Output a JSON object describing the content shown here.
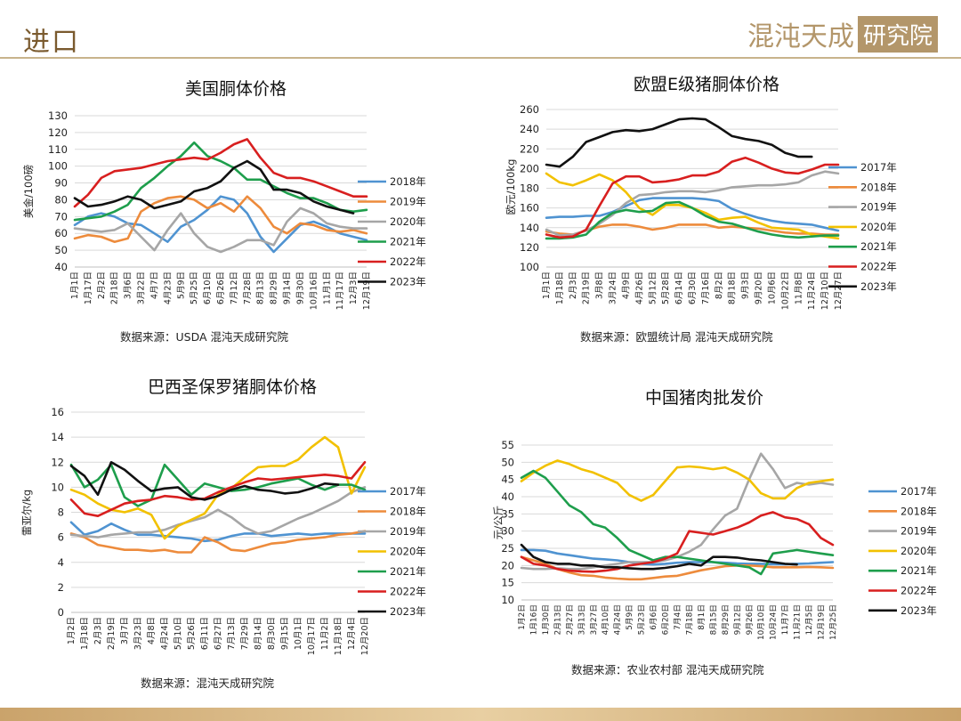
{
  "header": {
    "title": "进口",
    "brand_text": "混沌天成",
    "brand_seal": "研究院"
  },
  "colors": {
    "2017年": "#4f93d1",
    "2018年": "#4f93d1",
    "2019年": "#ed8b3c",
    "2020年": "#a6a6a6",
    "2021年": "#1e9e4c",
    "2022年": "#d81f1f",
    "2023年": "#111111",
    "yellow": "#f2c100"
  },
  "chart_data": [
    {
      "type": "line",
      "title": "美国胴体价格",
      "ylabel": "美金/100磅",
      "source": "数据来源：USDA  混沌天成研究院",
      "ylim": [
        40,
        130
      ],
      "yticks": [
        40,
        50,
        60,
        70,
        80,
        90,
        100,
        110,
        120,
        130
      ],
      "x_ticks": [
        "1月1日",
        "1月17日",
        "2月2日",
        "2月18日",
        "3月6日",
        "3月22日",
        "4月7日",
        "4月23日",
        "5月9日",
        "5月25日",
        "6月10日",
        "6月26日",
        "7月12日",
        "7月28日",
        "8月13日",
        "8月29日",
        "9月14日",
        "9月30日",
        "10月16日",
        "11月1日",
        "11月17日",
        "12月3日",
        "12月19日"
      ],
      "series": [
        {
          "name": "2018年",
          "color": "#4f93d1",
          "values": [
            65,
            70,
            72,
            70,
            66,
            65,
            60,
            55,
            64,
            68,
            74,
            82,
            80,
            72,
            58,
            49,
            57,
            65,
            67,
            64,
            60,
            58,
            56
          ]
        },
        {
          "name": "2019年",
          "color": "#ed8b3c",
          "values": [
            57,
            59,
            58,
            55,
            57,
            73,
            78,
            81,
            82,
            80,
            75,
            78,
            73,
            82,
            75,
            64,
            60,
            66,
            65,
            62,
            61,
            62,
            60
          ]
        },
        {
          "name": "2020年",
          "color": "#a6a6a6",
          "values": [
            63,
            62,
            61,
            62,
            66,
            58,
            50,
            62,
            72,
            60,
            52,
            49,
            52,
            56,
            56,
            53,
            67,
            75,
            72,
            66,
            64,
            63,
            63
          ]
        },
        {
          "name": "2021年",
          "color": "#1e9e4c",
          "values": [
            68,
            69,
            70,
            73,
            77,
            87,
            93,
            100,
            106,
            114,
            106,
            103,
            99,
            92,
            92,
            88,
            84,
            81,
            81,
            78,
            74,
            73,
            74
          ]
        },
        {
          "name": "2022年",
          "color": "#d81f1f",
          "values": [
            76,
            83,
            93,
            97,
            98,
            99,
            101,
            103,
            104,
            105,
            104,
            108,
            113,
            116,
            105,
            96,
            93,
            93,
            91,
            88,
            85,
            82,
            82
          ]
        },
        {
          "name": "2023年",
          "color": "#111111",
          "values": [
            81,
            76,
            77,
            79,
            82,
            80,
            75,
            77,
            79,
            85,
            87,
            91,
            99,
            103,
            98,
            86,
            86,
            84,
            79,
            76,
            74,
            72,
            null
          ]
        }
      ]
    },
    {
      "type": "line",
      "title": "欧盟E级猪胴体价格",
      "ylabel": "欧元/100kg",
      "source": "数据来源：欧盟统计局  混沌天成研究院",
      "ylim": [
        100,
        260
      ],
      "yticks": [
        100,
        120,
        140,
        160,
        180,
        200,
        220,
        240,
        260
      ],
      "x_ticks": [
        "1月1日",
        "1月18日",
        "2月3日",
        "2月19日",
        "3月8日",
        "3月24日",
        "4月9日",
        "4月26日",
        "5月12日",
        "5月28日",
        "6月14日",
        "6月30日",
        "7月16日",
        "8月2日",
        "8月18日",
        "9月3日",
        "9月20日",
        "10月6日",
        "10月22日",
        "11月8日",
        "11月24日",
        "12月10日",
        "12月27日"
      ],
      "series": [
        {
          "name": "2017年",
          "color": "#4f93d1",
          "values": [
            150,
            151,
            151,
            152,
            152,
            156,
            162,
            168,
            170,
            170,
            170,
            170,
            169,
            167,
            159,
            154,
            150,
            147,
            145,
            144,
            143,
            140,
            137
          ]
        },
        {
          "name": "2018年",
          "color": "#ed8b3c",
          "values": [
            136,
            134,
            133,
            137,
            141,
            143,
            143,
            141,
            138,
            140,
            143,
            143,
            143,
            140,
            141,
            140,
            139,
            137,
            135,
            134,
            134,
            133,
            133
          ]
        },
        {
          "name": "2019年",
          "color": "#a6a6a6",
          "values": [
            138,
            132,
            133,
            137,
            144,
            153,
            165,
            173,
            174,
            176,
            177,
            177,
            176,
            178,
            181,
            182,
            183,
            183,
            184,
            186,
            193,
            197,
            195
          ]
        },
        {
          "name": "2020年",
          "color": "#f2c100",
          "values": [
            195,
            186,
            183,
            188,
            194,
            188,
            176,
            160,
            153,
            163,
            163,
            160,
            155,
            148,
            150,
            151,
            145,
            140,
            139,
            138,
            133,
            131,
            129
          ]
        },
        {
          "name": "2021年",
          "color": "#1e9e4c",
          "values": [
            129,
            129,
            130,
            133,
            146,
            155,
            158,
            156,
            157,
            165,
            166,
            160,
            152,
            146,
            144,
            140,
            136,
            133,
            131,
            130,
            131,
            132,
            132
          ]
        },
        {
          "name": "2022年",
          "color": "#d81f1f",
          "values": [
            133,
            130,
            131,
            138,
            162,
            185,
            192,
            192,
            186,
            187,
            189,
            193,
            193,
            197,
            207,
            211,
            206,
            200,
            196,
            195,
            199,
            204,
            204
          ]
        },
        {
          "name": "2023年",
          "color": "#111111",
          "values": [
            204,
            202,
            212,
            227,
            232,
            237,
            239,
            238,
            240,
            245,
            250,
            251,
            250,
            242,
            233,
            230,
            228,
            224,
            216,
            212,
            212,
            null,
            null
          ]
        }
      ]
    },
    {
      "type": "line",
      "title": "巴西圣保罗猪胴体价格",
      "ylabel": "雷亚尔/kg",
      "source": "数据来源：混沌天成研究院",
      "ylim": [
        0,
        16
      ],
      "yticks": [
        0,
        2,
        4,
        6,
        8,
        10,
        12,
        14,
        16
      ],
      "x_ticks": [
        "1月2日",
        "1月18日",
        "2月3日",
        "2月19日",
        "3月7日",
        "3月23日",
        "4月8日",
        "4月24日",
        "5月10日",
        "5月26日",
        "6月11日",
        "6月27日",
        "7月13日",
        "7月29日",
        "8月14日",
        "8月30日",
        "9月15日",
        "10月1日",
        "10月17日",
        "11月2日",
        "11月18日",
        "12月4日",
        "12月20日"
      ],
      "series": [
        {
          "name": "2017年",
          "color": "#4f93d1",
          "values": [
            7.2,
            6.2,
            6.5,
            7.1,
            6.6,
            6.2,
            6.2,
            6.1,
            6.0,
            5.9,
            5.7,
            5.8,
            6.1,
            6.3,
            6.3,
            6.1,
            6.2,
            6.3,
            6.2,
            6.3,
            6.3,
            6.3,
            6.3
          ]
        },
        {
          "name": "2018年",
          "color": "#ed8b3c",
          "values": [
            6.3,
            6.0,
            5.4,
            5.2,
            5.0,
            5.0,
            4.9,
            5.0,
            4.8,
            4.8,
            6.0,
            5.6,
            5.0,
            4.9,
            5.2,
            5.5,
            5.6,
            5.8,
            5.9,
            6.0,
            6.2,
            6.3,
            6.5
          ]
        },
        {
          "name": "2019年",
          "color": "#a6a6a6",
          "values": [
            6.2,
            6.1,
            6.0,
            6.2,
            6.3,
            6.4,
            6.4,
            6.6,
            7.0,
            7.3,
            7.6,
            8.2,
            7.6,
            6.8,
            6.3,
            6.5,
            7.0,
            7.5,
            7.9,
            8.4,
            8.9,
            9.6,
            10.0
          ]
        },
        {
          "name": "2020年",
          "color": "#f2c100",
          "values": [
            9.8,
            9.4,
            8.7,
            8.2,
            8.0,
            8.3,
            7.8,
            5.9,
            6.9,
            7.4,
            7.9,
            9.4,
            9.9,
            10.8,
            11.6,
            11.7,
            11.7,
            12.2,
            13.2,
            14.0,
            13.2,
            9.5,
            11.6
          ]
        },
        {
          "name": "2021年",
          "color": "#1e9e4c",
          "values": [
            11.8,
            10.0,
            10.6,
            11.8,
            9.2,
            8.5,
            9.0,
            11.8,
            10.6,
            9.4,
            10.3,
            10.0,
            9.7,
            9.8,
            10.0,
            10.3,
            10.5,
            10.7,
            10.2,
            9.8,
            10.2,
            10.2,
            9.8
          ]
        },
        {
          "name": "2022年",
          "color": "#d81f1f",
          "values": [
            9.0,
            7.9,
            7.7,
            8.2,
            8.7,
            8.9,
            9.0,
            9.3,
            9.2,
            9.0,
            9.1,
            9.6,
            10.0,
            10.4,
            10.7,
            10.6,
            10.7,
            10.8,
            10.9,
            11.0,
            10.9,
            10.7,
            12.0
          ]
        },
        {
          "name": "2023年",
          "color": "#111111",
          "values": [
            11.7,
            10.9,
            9.4,
            12.0,
            11.4,
            10.5,
            9.7,
            9.9,
            10.0,
            9.2,
            9.0,
            9.3,
            9.8,
            10.1,
            9.8,
            9.7,
            9.5,
            9.6,
            9.9,
            10.3,
            10.2,
            null,
            null
          ]
        }
      ]
    },
    {
      "type": "line",
      "title": "中国猪肉批发价",
      "ylabel": "元/公斤",
      "source": "数据来源：农业农村部  混沌天成研究院",
      "ylim": [
        10,
        55
      ],
      "yticks": [
        10,
        15,
        20,
        25,
        30,
        35,
        40,
        45,
        50,
        55
      ],
      "x_ticks": [
        "1月2日",
        "1月16日",
        "1月30日",
        "2月13日",
        "2月27日",
        "3月13日",
        "3月27日",
        "4月10日",
        "4月24日",
        "5月9日",
        "5月23日",
        "6月6日",
        "6月20日",
        "7月4日",
        "7月18日",
        "8月1日",
        "8月15日",
        "8月29日",
        "9月12日",
        "9月26日",
        "10月10日",
        "10月24日",
        "11月7日",
        "11月21日",
        "12月5日",
        "12月19日",
        "12月25日"
      ],
      "series": [
        {
          "name": "2017年",
          "color": "#4f93d1",
          "values": [
            24.5,
            24.5,
            24.3,
            23.5,
            23.0,
            22.5,
            22.0,
            21.8,
            21.5,
            21.0,
            20.5,
            20.3,
            20.5,
            20.8,
            21.0,
            21.0,
            21.0,
            20.8,
            20.6,
            20.5,
            20.5,
            20.4,
            20.4,
            20.5,
            20.6,
            20.8,
            21.0
          ]
        },
        {
          "name": "2018年",
          "color": "#ed8b3c",
          "values": [
            22.5,
            21.5,
            20.5,
            19.0,
            18.0,
            17.2,
            17.0,
            16.5,
            16.2,
            16.0,
            16.0,
            16.4,
            16.8,
            17.0,
            17.8,
            18.6,
            19.2,
            19.8,
            20.0,
            20.0,
            19.8,
            19.5,
            19.5,
            19.5,
            19.6,
            19.5,
            19.3
          ]
        },
        {
          "name": "2019年",
          "color": "#a6a6a6",
          "values": [
            19.3,
            19.0,
            19.0,
            19.2,
            19.0,
            19.0,
            19.5,
            20.0,
            20.5,
            21.0,
            21.0,
            21.0,
            21.5,
            22.5,
            24.0,
            26.0,
            30.5,
            34.5,
            36.5,
            45.0,
            52.5,
            48.0,
            42.5,
            44.0,
            43.5,
            44.0,
            43.5
          ]
        },
        {
          "name": "2020年",
          "color": "#f2c100",
          "values": [
            44.5,
            47.0,
            49.0,
            50.5,
            49.5,
            48.0,
            47.0,
            45.5,
            44.0,
            40.5,
            38.8,
            40.5,
            44.5,
            48.5,
            48.8,
            48.5,
            48.0,
            48.5,
            47.0,
            45.0,
            41.0,
            39.5,
            39.5,
            42.5,
            44.0,
            44.5,
            45.0
          ]
        },
        {
          "name": "2021年",
          "color": "#1e9e4c",
          "values": [
            45.5,
            47.5,
            45.5,
            41.5,
            37.5,
            35.5,
            32.0,
            31.0,
            28.0,
            24.5,
            23.0,
            21.5,
            22.5,
            22.5,
            22.0,
            21.5,
            21.0,
            20.5,
            20.0,
            19.5,
            17.5,
            23.5,
            24.0,
            24.5,
            24.0,
            23.5,
            23.0
          ]
        },
        {
          "name": "2022年",
          "color": "#d81f1f",
          "values": [
            22.5,
            20.5,
            20.0,
            19.0,
            18.5,
            18.3,
            18.2,
            18.5,
            19.0,
            20.0,
            20.5,
            21.0,
            22.0,
            23.5,
            30.0,
            29.5,
            29.0,
            30.0,
            31.0,
            32.5,
            34.5,
            35.5,
            34.0,
            33.5,
            32.0,
            28.0,
            26.0
          ]
        },
        {
          "name": "2023年",
          "color": "#111111",
          "values": [
            26.0,
            22.5,
            21.0,
            20.5,
            20.5,
            20.0,
            20.0,
            19.5,
            19.5,
            19.2,
            19.0,
            19.0,
            19.3,
            19.8,
            20.5,
            20.0,
            22.5,
            22.5,
            22.3,
            21.8,
            21.5,
            21.0,
            20.5,
            20.3,
            null,
            null,
            null
          ]
        }
      ]
    }
  ]
}
